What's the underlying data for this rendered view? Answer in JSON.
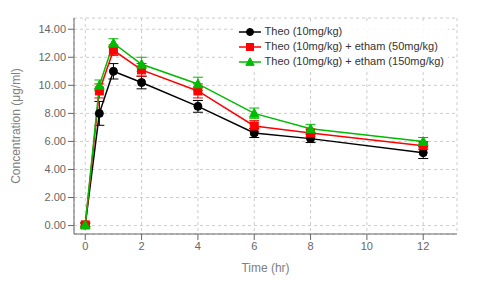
{
  "chart_data": {
    "type": "line",
    "xlabel": "Time (hr)",
    "ylabel": "Concentration  (μg/ml)",
    "x": [
      0,
      0.5,
      1,
      2,
      4,
      6,
      8,
      12
    ],
    "series": [
      {
        "name": "Theo (10mg/kg)",
        "color": "#000000",
        "marker": "circle",
        "values": [
          0.05,
          8.0,
          11.0,
          10.2,
          8.5,
          6.6,
          6.2,
          5.2
        ],
        "errors": [
          0.15,
          0.85,
          0.55,
          0.45,
          0.42,
          0.32,
          0.28,
          0.42
        ]
      },
      {
        "name": "Theo (10mg/kg) + etham (50mg/kg)",
        "color": "#ff0000",
        "marker": "square",
        "values": [
          0.05,
          9.6,
          12.5,
          11.1,
          9.6,
          7.1,
          6.6,
          5.7
        ],
        "errors": [
          0.12,
          0.5,
          0.38,
          0.45,
          0.5,
          0.38,
          0.28,
          0.28
        ]
      },
      {
        "name": "Theo (10mg/kg) + etham (150mg/kg)",
        "color": "#00bb00",
        "marker": "triangle",
        "values": [
          0.05,
          10.0,
          13.0,
          11.5,
          10.1,
          8.0,
          6.9,
          6.0
        ],
        "errors": [
          0.12,
          0.38,
          0.32,
          0.5,
          0.48,
          0.38,
          0.32,
          0.28
        ]
      }
    ],
    "xlim": [
      -0.4,
      13.2
    ],
    "ylim": [
      -0.6,
      14.8
    ],
    "xticks": [
      0,
      2,
      4,
      6,
      8,
      10,
      12
    ],
    "yticks": [
      {
        "value": 0,
        "label": "0.00"
      },
      {
        "value": 2,
        "label": "2.00"
      },
      {
        "value": 4,
        "label": "4.00"
      },
      {
        "value": 6,
        "label": "6.00"
      },
      {
        "value": 8,
        "label": "8.00"
      },
      {
        "value": 10,
        "label": "10.00"
      },
      {
        "value": 12,
        "label": "12.00"
      },
      {
        "value": 14,
        "label": "14.00"
      }
    ],
    "grid": true,
    "legend": "upper right"
  }
}
